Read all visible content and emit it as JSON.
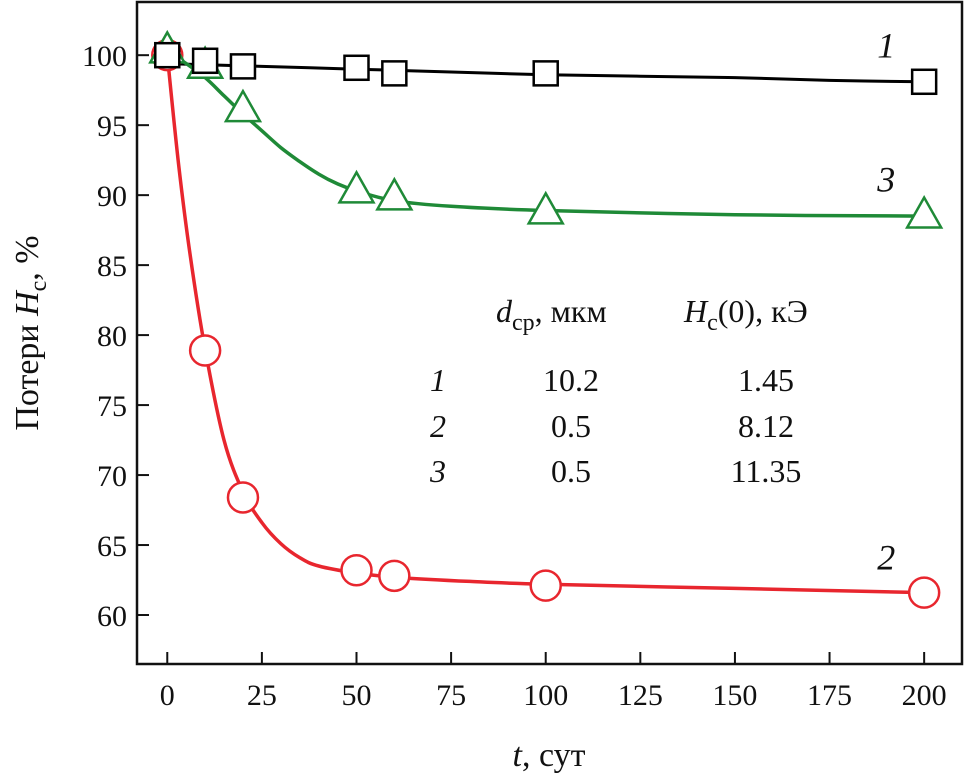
{
  "chart_data": {
    "type": "line",
    "title": "",
    "xlabel": {
      "var": "t",
      "rest": ", сут"
    },
    "ylabel": {
      "before": "Потери ",
      "var": "H",
      "sub": "c",
      "after": ", %"
    },
    "xlim": [
      -8,
      210
    ],
    "ylim": [
      56.5,
      103.8
    ],
    "xticks": [
      0,
      25,
      50,
      75,
      100,
      125,
      150,
      175,
      200
    ],
    "yticks": [
      60,
      65,
      70,
      75,
      80,
      85,
      90,
      95,
      100
    ],
    "grid": false,
    "series": [
      {
        "name": "1",
        "marker": "square",
        "color": "#000000",
        "x": [
          0,
          10,
          20,
          50,
          60,
          100,
          200
        ],
        "y": [
          100.0,
          99.6,
          99.2,
          99.1,
          98.7,
          98.7,
          98.1
        ],
        "fit": [
          [
            0,
            99.4
          ],
          [
            25,
            99.2
          ],
          [
            50,
            99.0
          ],
          [
            75,
            98.8
          ],
          [
            100,
            98.6
          ],
          [
            125,
            98.5
          ],
          [
            150,
            98.4
          ],
          [
            175,
            98.2
          ],
          [
            200,
            98.1
          ]
        ]
      },
      {
        "name": "2",
        "marker": "circle",
        "color": "#e8262e",
        "x": [
          0,
          10,
          20,
          50,
          60,
          100,
          200
        ],
        "y": [
          100.0,
          78.9,
          68.4,
          63.2,
          62.8,
          62.1,
          61.6
        ],
        "fit": [
          [
            0,
            100.0
          ],
          [
            3,
            92.2
          ],
          [
            6,
            85.8
          ],
          [
            10,
            79.0
          ],
          [
            15,
            72.5
          ],
          [
            20,
            68.8
          ],
          [
            25,
            66.6
          ],
          [
            30,
            65.1
          ],
          [
            35,
            64.1
          ],
          [
            40,
            63.5
          ],
          [
            50,
            63.0
          ],
          [
            60,
            62.7
          ],
          [
            80,
            62.4
          ],
          [
            100,
            62.2
          ],
          [
            150,
            61.9
          ],
          [
            200,
            61.6
          ]
        ]
      },
      {
        "name": "3",
        "marker": "triangle",
        "color": "#1f8a37",
        "x": [
          0,
          10,
          20,
          50,
          60,
          100,
          200
        ],
        "y": [
          100.3,
          99.2,
          96.1,
          90.3,
          89.8,
          88.8,
          88.5
        ],
        "fit": [
          [
            0,
            100.3
          ],
          [
            5,
            99.4
          ],
          [
            10,
            98.4
          ],
          [
            15,
            97.1
          ],
          [
            20,
            95.8
          ],
          [
            25,
            94.6
          ],
          [
            30,
            93.4
          ],
          [
            35,
            92.4
          ],
          [
            40,
            91.5
          ],
          [
            45,
            90.8
          ],
          [
            50,
            90.3
          ],
          [
            60,
            89.6
          ],
          [
            75,
            89.2
          ],
          [
            100,
            88.9
          ],
          [
            150,
            88.6
          ],
          [
            200,
            88.5
          ]
        ]
      }
    ],
    "series_labels": [
      {
        "text": "1",
        "x": 190,
        "y": 100.7
      },
      {
        "text": "3",
        "x": 190,
        "y": 91.1
      },
      {
        "text": "2",
        "x": 190,
        "y": 64.1
      }
    ],
    "legend_table": {
      "header_d": {
        "var": "d",
        "sub": "ср",
        "rest": ", мкм"
      },
      "header_h": {
        "var": "H",
        "sub": "с",
        "rest": "(0), кЭ"
      },
      "rows": [
        {
          "id": "1",
          "d": "10.2",
          "hc": "1.45"
        },
        {
          "id": "2",
          "d": "0.5",
          "hc": "8.12"
        },
        {
          "id": "3",
          "d": "0.5",
          "hc": "11.35"
        }
      ]
    }
  }
}
